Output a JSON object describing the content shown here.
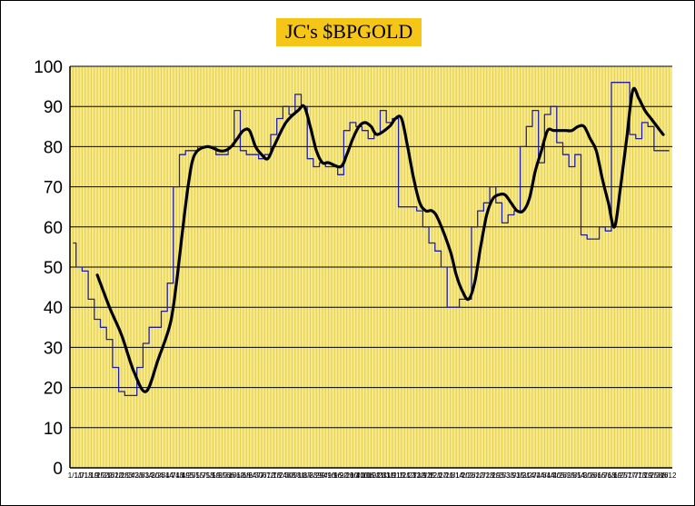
{
  "chart_data": {
    "type": "line",
    "title": "JC's $BPGOLD",
    "xlabel": "",
    "ylabel": "",
    "ylim": [
      0,
      100
    ],
    "yticks": [
      0,
      10,
      20,
      30,
      40,
      50,
      60,
      70,
      80,
      90,
      100
    ],
    "xtick_labels": [
      "1/1",
      "1/7",
      "1/13",
      "1/19",
      "1/25",
      "1/31",
      "2/6",
      "2/12",
      "2/18",
      "2/24",
      "3/2",
      "3/8",
      "3/14",
      "3/20",
      "3/26",
      "4/1",
      "4/7",
      "4/13",
      "4/19",
      "4/25",
      "5/1",
      "5/7",
      "5/13",
      "5/19",
      "5/25",
      "5/31",
      "6/6",
      "6/12",
      "6/18",
      "6/24",
      "6/30",
      "7/6",
      "7/12",
      "7/18",
      "7/24",
      "7/30",
      "8/5",
      "8/11",
      "8/17",
      "8/23",
      "8/29",
      "9/4",
      "9/10",
      "9/16",
      "9/22",
      "9/28",
      "10/4",
      "10/10",
      "10/16",
      "10/22",
      "10/28",
      "11/3",
      "11/9",
      "11/15",
      "11/21",
      "11/27",
      "12/3",
      "12/9",
      "12/15",
      "12/21",
      "12/27",
      "1/2",
      "1/8",
      "1/14",
      "1/20",
      "1/26",
      "2/1",
      "2/7",
      "2/13",
      "2/19",
      "2/25",
      "3/3",
      "3/9",
      "3/15",
      "3/21",
      "3/27",
      "4/2",
      "4/8",
      "4/14",
      "4/20",
      "4/26",
      "5/2",
      "5/8",
      "5/14",
      "5/20",
      "5/26",
      "6/1",
      "6/7",
      "6/13",
      "6/19",
      "6/25",
      "7/1",
      "7/7",
      "7/13",
      "7/19",
      "7/25",
      "7/31",
      "8/6",
      "8/12"
    ],
    "colors": {
      "plot_background": "#f7e98f",
      "grid_line": "#e3cf45",
      "title_background": "#f5c518",
      "raw_series": "#1f1f9e",
      "smoothed_series": "#000000"
    },
    "series": [
      {
        "style": "thin-blue-step",
        "x": [
          0,
          1,
          2,
          3,
          4,
          5,
          6,
          7,
          8,
          9,
          10,
          11,
          12,
          13,
          14,
          15,
          16,
          17,
          18,
          19,
          20,
          21,
          22,
          23,
          24,
          25,
          26,
          27,
          28,
          29,
          30,
          31,
          32,
          33,
          34,
          35,
          36,
          37,
          38,
          39,
          40,
          41,
          42,
          43,
          44,
          45,
          46,
          47,
          48,
          49,
          50,
          51,
          52,
          53,
          54,
          55,
          56,
          57,
          58,
          59,
          60,
          61,
          62,
          63,
          64,
          65,
          66,
          67,
          68,
          69,
          70,
          71,
          72,
          73,
          74,
          75,
          76,
          77,
          78,
          79,
          80,
          81,
          82,
          83,
          84,
          85,
          86,
          87,
          88,
          89,
          90,
          91,
          92,
          93,
          94,
          95,
          96,
          97,
          98
        ],
        "values": [
          56,
          50,
          49,
          42,
          37,
          35,
          32,
          25,
          19,
          18,
          18,
          25,
          31,
          35,
          35,
          39,
          46,
          70,
          78,
          79,
          79,
          80,
          80,
          80,
          78,
          78,
          80,
          89,
          79,
          78,
          78,
          77,
          78,
          83,
          87,
          90,
          88,
          93,
          90,
          77,
          75,
          76,
          75,
          75,
          73,
          84,
          86,
          85,
          84,
          82,
          83,
          89,
          86,
          87,
          65,
          65,
          65,
          64,
          60,
          56,
          54,
          50,
          40,
          40,
          42,
          42,
          60,
          64,
          66,
          70,
          66,
          61,
          63,
          64,
          80,
          85,
          89,
          76,
          88,
          90,
          81,
          78,
          75,
          78,
          58,
          57,
          57,
          60,
          59,
          96,
          96,
          96,
          83,
          82,
          86,
          85,
          79,
          79,
          79
        ]
      },
      {
        "style": "thick-black-smoothed",
        "x": [
          4,
          6,
          8,
          10,
          12,
          14,
          16,
          17,
          18,
          19,
          20,
          22,
          24,
          25,
          26,
          27,
          28,
          29,
          30,
          31,
          32,
          33,
          35,
          37,
          38,
          39,
          40,
          41,
          42,
          44,
          45,
          46,
          47,
          48,
          49,
          50,
          52,
          53,
          54,
          55,
          56,
          57,
          58,
          59,
          60,
          62,
          63,
          64,
          65,
          66,
          67,
          68,
          69,
          70,
          71,
          72,
          73,
          74,
          75,
          76,
          77,
          78,
          79,
          80,
          81,
          82,
          83,
          84,
          85,
          86,
          87,
          88,
          89,
          90,
          91,
          92,
          93,
          94,
          95,
          96,
          97
        ],
        "values": [
          48,
          40,
          33,
          24,
          19,
          27,
          36,
          46,
          59,
          71,
          78,
          80,
          79,
          79,
          80,
          82,
          84,
          84,
          80,
          78,
          77,
          80,
          86,
          89,
          90,
          85,
          79,
          76,
          76,
          75,
          78,
          82,
          85,
          86,
          85,
          83,
          85,
          87,
          87,
          80,
          72,
          66,
          64,
          64,
          62,
          54,
          48,
          44,
          42,
          46,
          55,
          63,
          67,
          68,
          68,
          66,
          64,
          64,
          67,
          74,
          79,
          84,
          84,
          84,
          84,
          84,
          85,
          85,
          82,
          79,
          72,
          66,
          60,
          70,
          82,
          94,
          92,
          89,
          87,
          85,
          83
        ]
      }
    ]
  }
}
